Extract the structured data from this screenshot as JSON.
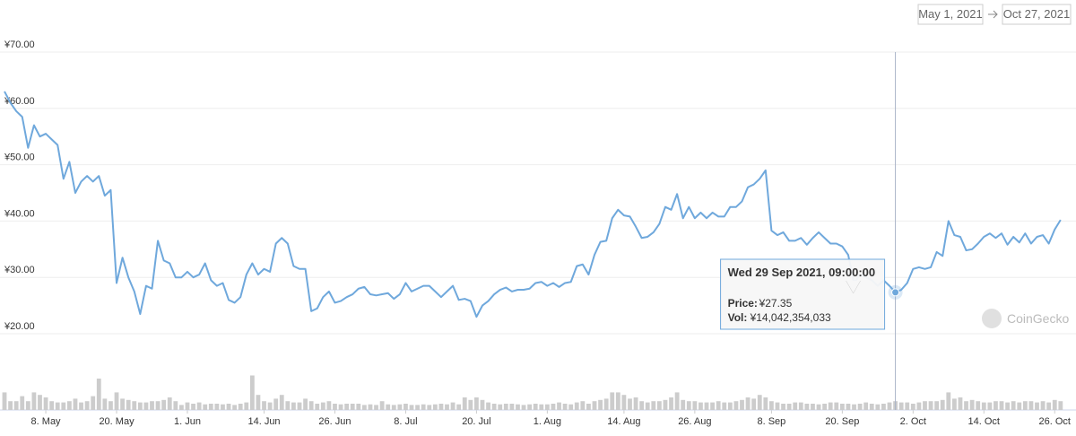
{
  "chart_data": {
    "type": "line",
    "date_from": "May 1, 2021",
    "date_to": "Oct 27, 2021",
    "watermark": "CoinGecko",
    "xlim": [
      0,
      180
    ],
    "xticks": [
      {
        "value": 7,
        "label": "8. May"
      },
      {
        "value": 19,
        "label": "20. May"
      },
      {
        "value": 31,
        "label": "1. Jun"
      },
      {
        "value": 44,
        "label": "14. Jun"
      },
      {
        "value": 56,
        "label": "26. Jun"
      },
      {
        "value": 68,
        "label": "8. Jul"
      },
      {
        "value": 80,
        "label": "20. Jul"
      },
      {
        "value": 92,
        "label": "1. Aug"
      },
      {
        "value": 105,
        "label": "14. Aug"
      },
      {
        "value": 117,
        "label": "26. Aug"
      },
      {
        "value": 130,
        "label": "8. Sep"
      },
      {
        "value": 142,
        "label": "20. Sep"
      },
      {
        "value": 154,
        "label": "2. Oct"
      },
      {
        "value": 166,
        "label": "14. Oct"
      },
      {
        "value": 178,
        "label": "26. Oct"
      }
    ],
    "ylim": [
      10,
      70
    ],
    "yticks": [
      {
        "value": 20,
        "label": "¥20.00"
      },
      {
        "value": 30,
        "label": "¥30.00"
      },
      {
        "value": 40,
        "label": "¥40.00"
      },
      {
        "value": 50,
        "label": "¥50.00"
      },
      {
        "value": 60,
        "label": "¥60.00"
      },
      {
        "value": 70,
        "label": "¥70.00"
      }
    ],
    "y2lim": [
      0,
      60
    ],
    "grid": true,
    "crosshair_x": 151,
    "tooltip": {
      "date": "Wed 29 Sep 2021, 09:00:00",
      "price_label": "Price:",
      "price": "¥27.35",
      "vol_label": "Vol:",
      "vol": "¥14,042,354,033"
    },
    "x": [
      0,
      1,
      2,
      3,
      4,
      5,
      6,
      7,
      8,
      9,
      10,
      11,
      12,
      13,
      14,
      15,
      16,
      17,
      18,
      19,
      20,
      21,
      22,
      23,
      24,
      25,
      26,
      27,
      28,
      29,
      30,
      31,
      32,
      33,
      34,
      35,
      36,
      37,
      38,
      39,
      40,
      41,
      42,
      43,
      44,
      45,
      46,
      47,
      48,
      49,
      50,
      51,
      52,
      53,
      54,
      55,
      56,
      57,
      58,
      59,
      60,
      61,
      62,
      63,
      64,
      65,
      66,
      67,
      68,
      69,
      70,
      71,
      72,
      73,
      74,
      75,
      76,
      77,
      78,
      79,
      80,
      81,
      82,
      83,
      84,
      85,
      86,
      87,
      88,
      89,
      90,
      91,
      92,
      93,
      94,
      95,
      96,
      97,
      98,
      99,
      100,
      101,
      102,
      103,
      104,
      105,
      106,
      107,
      108,
      109,
      110,
      111,
      112,
      113,
      114,
      115,
      116,
      117,
      118,
      119,
      120,
      121,
      122,
      123,
      124,
      125,
      126,
      127,
      128,
      129,
      130,
      131,
      132,
      133,
      134,
      135,
      136,
      137,
      138,
      139,
      140,
      141,
      142,
      143,
      144,
      145,
      146,
      147,
      148,
      149,
      150,
      151,
      152,
      153,
      154,
      155,
      156,
      157,
      158,
      159,
      160,
      161,
      162,
      163,
      164,
      165,
      166,
      167,
      168,
      169,
      170,
      171,
      172,
      173,
      174,
      175,
      176,
      177,
      178,
      179
    ],
    "price": {
      "color": "#6fa8dc",
      "values": [
        63,
        61,
        59.5,
        58.5,
        53,
        57,
        55,
        55.5,
        54.5,
        53.5,
        47.5,
        50.5,
        45,
        47,
        48,
        47,
        48,
        44.5,
        45.5,
        29,
        33.5,
        30,
        27.5,
        23.5,
        28.5,
        28,
        36.5,
        33,
        32.5,
        30,
        30,
        31,
        30,
        30.5,
        32.5,
        29.5,
        28.5,
        29,
        26,
        25.5,
        26.5,
        30.5,
        32.5,
        30.5,
        31.5,
        31,
        36,
        37,
        36,
        32,
        31.5,
        31.5,
        24,
        24.5,
        26.5,
        27.5,
        25.5,
        25.8,
        26.5,
        27,
        28,
        28.3,
        27,
        26.8,
        27,
        27.2,
        26.2,
        27,
        29,
        27.5,
        28,
        28.5,
        28.5,
        27.5,
        26.5,
        27.5,
        28.5,
        26,
        26.2,
        25.8,
        23,
        25,
        25.8,
        27,
        27.8,
        28.2,
        27.5,
        27.8,
        27.8,
        28,
        29,
        29.2,
        28.5,
        29,
        28.3,
        29,
        29.2,
        32,
        32.3,
        30.5,
        34,
        36.3,
        36.5,
        40.5,
        42,
        41,
        40.8,
        39,
        37,
        37.2,
        38,
        39.5,
        42.5,
        42,
        44.8,
        40.5,
        42.5,
        40.5,
        41.5,
        40.5,
        41.5,
        40.8,
        40.8,
        42.5,
        42.5,
        43.5,
        46,
        46.5,
        47.5,
        49,
        38.3,
        37.5,
        38,
        36.5,
        36.5,
        37,
        35.8,
        37,
        38,
        37,
        36,
        36,
        35.5,
        34,
        29,
        30.5,
        30,
        29.5,
        28.5,
        29.5,
        28.5,
        27.35,
        27.8,
        29,
        31.5,
        31.8,
        31.5,
        31.8,
        34.5,
        33.8,
        40,
        37.5,
        37.2,
        34.8,
        35,
        36,
        37.2,
        37.8,
        37,
        37.8,
        35.8,
        37.2,
        36.2,
        37.8,
        36,
        37.2,
        37.5,
        36,
        38.5,
        40.2
      ]
    },
    "volume": {
      "color": "#cccccc",
      "axis": "y2",
      "values": [
        28,
        14,
        14,
        22,
        14,
        28,
        24,
        20,
        14,
        12,
        12,
        14,
        18,
        12,
        14,
        22,
        50,
        18,
        14,
        28,
        18,
        16,
        14,
        12,
        12,
        14,
        14,
        16,
        20,
        14,
        8,
        12,
        10,
        12,
        9,
        10,
        10,
        9,
        10,
        8,
        10,
        12,
        55,
        24,
        14,
        12,
        18,
        24,
        14,
        12,
        12,
        18,
        14,
        10,
        12,
        14,
        10,
        9,
        10,
        10,
        10,
        8,
        9,
        8,
        14,
        9,
        8,
        9,
        10,
        8,
        8,
        9,
        8,
        9,
        10,
        9,
        12,
        9,
        20,
        16,
        20,
        16,
        12,
        10,
        9,
        10,
        10,
        9,
        8,
        9,
        10,
        9,
        9,
        10,
        12,
        10,
        9,
        12,
        14,
        10,
        14,
        16,
        18,
        28,
        28,
        24,
        18,
        20,
        14,
        12,
        14,
        14,
        16,
        20,
        28,
        16,
        14,
        14,
        12,
        12,
        12,
        14,
        12,
        12,
        14,
        16,
        20,
        18,
        24,
        20,
        14,
        12,
        10,
        10,
        12,
        12,
        10,
        10,
        9,
        10,
        12,
        12,
        10,
        10,
        9,
        10,
        12,
        10,
        9,
        10,
        12,
        14,
        12,
        12,
        10,
        12,
        14,
        14,
        14,
        16,
        28,
        18,
        20,
        14,
        16,
        14,
        12,
        12,
        14,
        14,
        12,
        14,
        12,
        14,
        14,
        12,
        14,
        12,
        16,
        14
      ]
    }
  }
}
